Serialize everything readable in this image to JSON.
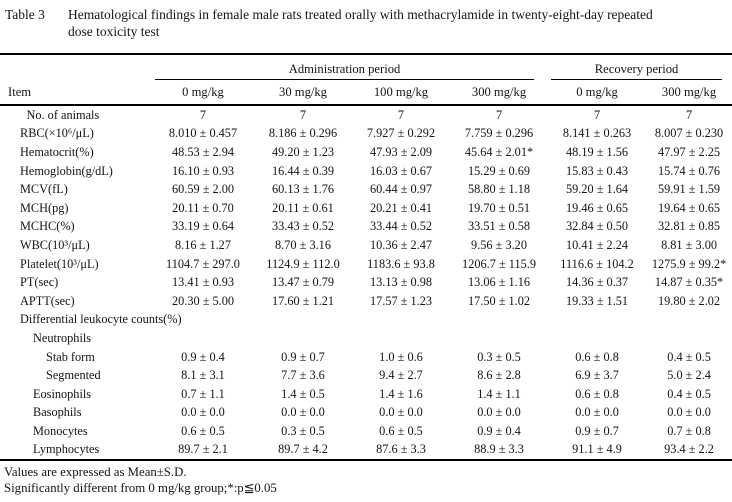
{
  "title": {
    "label": "Table 3",
    "caption": "Hematological findings in female male rats treated orally with methacrylamide in twenty-eight-day repeated dose toxicity test"
  },
  "table": {
    "item_header": "Item",
    "group_headers": [
      {
        "label": "Administration period",
        "span": 4
      },
      {
        "label": "Recovery period",
        "span": 2
      }
    ],
    "columns": [
      "0 mg/kg",
      "30 mg/kg",
      "100 mg/kg",
      "300 mg/kg",
      "0 mg/kg",
      "300 mg/kg"
    ],
    "rows": [
      {
        "item": "No. of animals",
        "indent": 0.5,
        "values": [
          "7",
          "7",
          "7",
          "7",
          "7",
          "7"
        ]
      },
      {
        "item": "RBC(×10⁶/μL)",
        "indent": 0,
        "values": [
          "8.010 ± 0.457",
          "8.186 ± 0.296",
          "7.927 ± 0.292",
          "7.759 ± 0.296",
          "8.141 ± 0.263",
          "8.007 ± 0.230"
        ]
      },
      {
        "item": "Hematocrit(%)",
        "indent": 0,
        "values": [
          "48.53 ± 2.94",
          "49.20 ± 1.23",
          "47.93 ± 2.09",
          "45.64 ± 2.01*",
          "48.19 ± 1.56",
          "47.97 ± 2.25"
        ]
      },
      {
        "item": "Hemoglobin(g/dL)",
        "indent": 0,
        "values": [
          "16.10 ± 0.93",
          "16.44 ± 0.39",
          "16.03 ± 0.67",
          "15.29 ± 0.69",
          "15.83 ± 0.43",
          "15.74 ± 0.76"
        ]
      },
      {
        "item": "MCV(fL)",
        "indent": 0,
        "values": [
          "60.59 ± 2.00",
          "60.13 ± 1.76",
          "60.44 ± 0.97",
          "58.80 ± 1.18",
          "59.20 ± 1.64",
          "59.91 ± 1.59"
        ]
      },
      {
        "item": "MCH(pg)",
        "indent": 0,
        "values": [
          "20.11 ± 0.70",
          "20.11 ± 0.61",
          "20.21 ± 0.41",
          "19.70 ± 0.51",
          "19.46 ± 0.65",
          "19.64 ± 0.65"
        ]
      },
      {
        "item": "MCHC(%)",
        "indent": 0,
        "values": [
          "33.19 ± 0.64",
          "33.43 ± 0.52",
          "33.44 ± 0.52",
          "33.51 ± 0.58",
          "32.84 ± 0.50",
          "32.81 ± 0.85"
        ]
      },
      {
        "item": "WBC(10³/μL)",
        "indent": 0,
        "values": [
          "8.16 ± 1.27",
          "8.70 ± 3.16",
          "10.36 ± 2.47",
          "9.56 ± 3.20",
          "10.41 ± 2.24",
          "8.81 ± 3.00"
        ]
      },
      {
        "item": "Platelet(10³/μL)",
        "indent": 0,
        "values": [
          "1104.7 ± 297.0",
          "1124.9 ± 112.0",
          "1183.6 ± 93.8",
          "1206.7 ± 115.9",
          "1116.6 ± 104.2",
          "1275.9 ± 99.2*"
        ]
      },
      {
        "item": "PT(sec)",
        "indent": 0,
        "values": [
          "13.41 ± 0.93",
          "13.47 ± 0.79",
          "13.13 ± 0.98",
          "13.06 ± 1.16",
          "14.36 ± 0.37",
          "14.87 ± 0.35*"
        ]
      },
      {
        "item": "APTT(sec)",
        "indent": 0,
        "values": [
          "20.30 ± 5.00",
          "17.60 ± 1.21",
          "17.57 ± 1.23",
          "17.50 ± 1.02",
          "19.33 ± 1.51",
          "19.80 ± 2.02"
        ]
      },
      {
        "item": "Differential leukocyte counts(%)",
        "indent": 0,
        "values": [
          "",
          "",
          "",
          "",
          "",
          ""
        ]
      },
      {
        "item": "Neutrophils",
        "indent": 1,
        "values": [
          "",
          "",
          "",
          "",
          "",
          ""
        ]
      },
      {
        "item": "Stab form",
        "indent": 2,
        "values": [
          "0.9 ± 0.4",
          "0.9 ± 0.7",
          "1.0 ± 0.6",
          "0.3 ± 0.5",
          "0.6 ± 0.8",
          "0.4 ± 0.5"
        ]
      },
      {
        "item": "Segmented",
        "indent": 2,
        "values": [
          "8.1 ± 3.1",
          "7.7 ± 3.6",
          "9.4 ± 2.7",
          "8.6 ± 2.8",
          "6.9 ± 3.7",
          "5.0 ± 2.4"
        ]
      },
      {
        "item": "Eosinophils",
        "indent": 1,
        "values": [
          "0.7 ± 1.1",
          "1.4 ± 0.5",
          "1.4 ± 1.6",
          "1.4 ± 1.1",
          "0.6 ± 0.8",
          "0.4 ± 0.5"
        ]
      },
      {
        "item": "Basophils",
        "indent": 1,
        "values": [
          "0.0 ± 0.0",
          "0.0 ± 0.0",
          "0.0 ± 0.0",
          "0.0 ± 0.0",
          "0.0 ± 0.0",
          "0.0 ± 0.0"
        ]
      },
      {
        "item": "Monocytes",
        "indent": 1,
        "values": [
          "0.6 ± 0.5",
          "0.3 ± 0.5",
          "0.6 ± 0.5",
          "0.9 ± 0.4",
          "0.9 ± 0.7",
          "0.7 ± 0.8"
        ]
      },
      {
        "item": "Lymphocytes",
        "indent": 1,
        "values": [
          "89.7 ± 2.1",
          "89.7 ± 4.2",
          "87.6 ± 3.3",
          "88.9 ± 3.3",
          "91.1 ± 4.9",
          "93.4 ± 2.2"
        ]
      }
    ]
  },
  "footnotes": [
    "Values are expressed as Mean±S.D.",
    "Significantly different from 0 mg/kg group;*:p≦0.05"
  ]
}
